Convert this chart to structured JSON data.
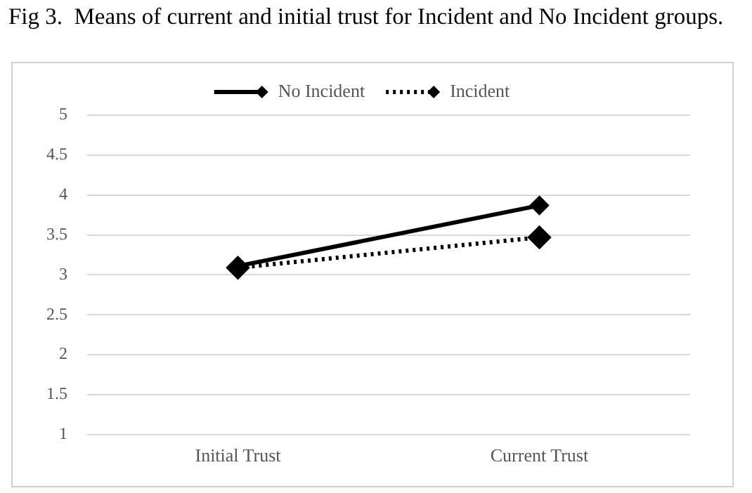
{
  "chart_data": {
    "type": "line",
    "title": "Fig 3.  Means of current and initial trust for Incident and No Incident groups.",
    "categories": [
      "Initial Trust",
      "Current Trust"
    ],
    "series": [
      {
        "name": "No Incident",
        "color": "#000000",
        "values": [
          3.11,
          3.87
        ],
        "line_style": "solid"
      },
      {
        "name": "Incident",
        "color": "#000000",
        "values": [
          3.09,
          3.47
        ],
        "line_style": "dotted"
      }
    ],
    "ylim": [
      1,
      5
    ],
    "yticks": [
      1,
      1.5,
      2,
      2.5,
      3,
      3.5,
      4,
      4.5,
      5
    ],
    "grid": "y",
    "legend": "top",
    "marker": "diamond"
  }
}
